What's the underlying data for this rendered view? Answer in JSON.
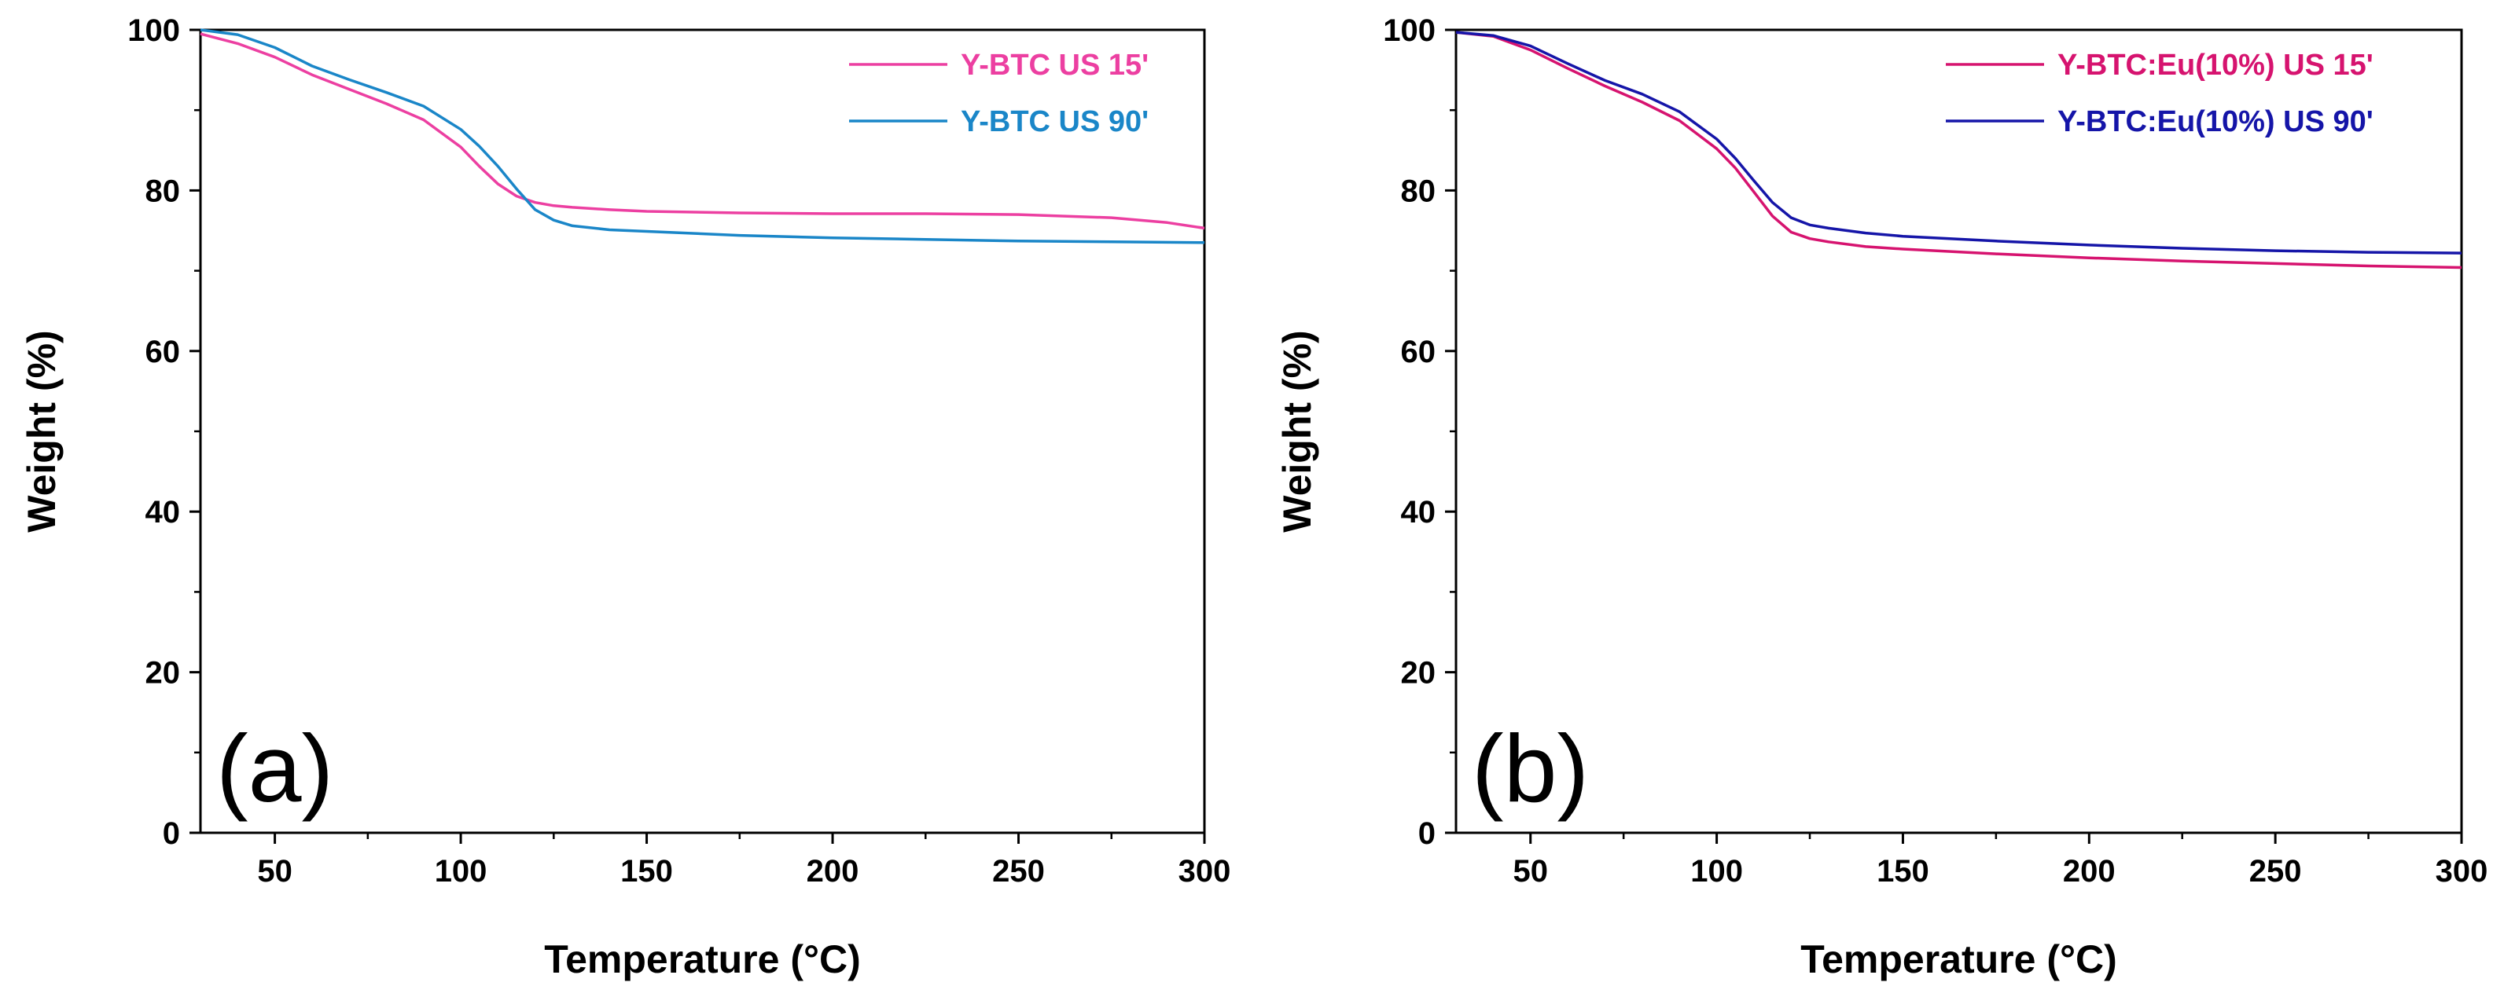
{
  "chart_data": [
    {
      "type": "line",
      "panel_label": "(a)",
      "xlabel": "Temperature (°C)",
      "ylabel": "Weight (%)",
      "xlim": [
        30,
        300
      ],
      "ylim": [
        0,
        100
      ],
      "xticks": [
        50,
        100,
        150,
        200,
        250,
        300
      ],
      "yticks": [
        0,
        20,
        40,
        60,
        80,
        100
      ],
      "xtick_labels": [
        "50",
        "100",
        "150",
        "200",
        "250",
        "300"
      ],
      "ytick_labels": [
        "0",
        "20",
        "40",
        "60",
        "80",
        "100"
      ],
      "legend_position": "top-right",
      "series": [
        {
          "name": "Y-BTC US 15'",
          "color": "#ec3fa1",
          "x": [
            30,
            40,
            50,
            60,
            70,
            80,
            90,
            100,
            105,
            110,
            115,
            120,
            125,
            130,
            140,
            150,
            175,
            200,
            225,
            250,
            275,
            290,
            300
          ],
          "y": [
            99.5,
            98.3,
            96.6,
            94.4,
            92.6,
            90.8,
            88.8,
            85.4,
            83.0,
            80.8,
            79.3,
            78.5,
            78.1,
            77.9,
            77.6,
            77.4,
            77.2,
            77.1,
            77.1,
            77.0,
            76.6,
            76.0,
            75.3
          ]
        },
        {
          "name": "Y-BTC US 90'",
          "color": "#1a86c8",
          "x": [
            30,
            40,
            50,
            60,
            70,
            80,
            90,
            100,
            105,
            110,
            115,
            120,
            125,
            130,
            140,
            150,
            175,
            200,
            225,
            250,
            275,
            300
          ],
          "y": [
            100.0,
            99.4,
            97.8,
            95.5,
            93.8,
            92.2,
            90.5,
            87.6,
            85.5,
            83.0,
            80.2,
            77.6,
            76.3,
            75.6,
            75.1,
            74.9,
            74.4,
            74.1,
            73.9,
            73.7,
            73.6,
            73.5
          ]
        }
      ]
    },
    {
      "type": "line",
      "panel_label": "(b)",
      "xlabel": "Temperature (°C)",
      "ylabel": "Weight (%)",
      "xlim": [
        30,
        300
      ],
      "ylim": [
        0,
        100
      ],
      "xticks": [
        50,
        100,
        150,
        200,
        250,
        300
      ],
      "yticks": [
        0,
        20,
        40,
        60,
        80,
        100
      ],
      "xtick_labels": [
        "50",
        "100",
        "150",
        "200",
        "250",
        "300"
      ],
      "ytick_labels": [
        "0",
        "20",
        "40",
        "60",
        "80",
        "100"
      ],
      "legend_position": "top-right",
      "series": [
        {
          "name": "Y-BTC:Eu(10%) US 15'",
          "color": "#d6136f",
          "x": [
            30,
            40,
            50,
            60,
            70,
            80,
            90,
            100,
            105,
            110,
            115,
            120,
            125,
            130,
            140,
            150,
            175,
            200,
            225,
            250,
            275,
            300
          ],
          "y": [
            99.7,
            99.2,
            97.5,
            95.2,
            93.0,
            91.0,
            88.7,
            85.2,
            82.8,
            79.8,
            76.8,
            74.8,
            74.0,
            73.6,
            73.0,
            72.7,
            72.1,
            71.6,
            71.2,
            70.9,
            70.6,
            70.4
          ]
        },
        {
          "name": "Y-BTC:Eu(10%) US 90'",
          "color": "#1515a8",
          "x": [
            30,
            40,
            50,
            60,
            70,
            80,
            90,
            100,
            105,
            110,
            115,
            120,
            125,
            130,
            140,
            150,
            175,
            200,
            225,
            250,
            275,
            300
          ],
          "y": [
            99.7,
            99.3,
            98.0,
            95.8,
            93.7,
            92.0,
            89.8,
            86.4,
            84.0,
            81.2,
            78.5,
            76.6,
            75.7,
            75.3,
            74.7,
            74.3,
            73.7,
            73.2,
            72.8,
            72.5,
            72.3,
            72.2
          ]
        }
      ]
    }
  ]
}
